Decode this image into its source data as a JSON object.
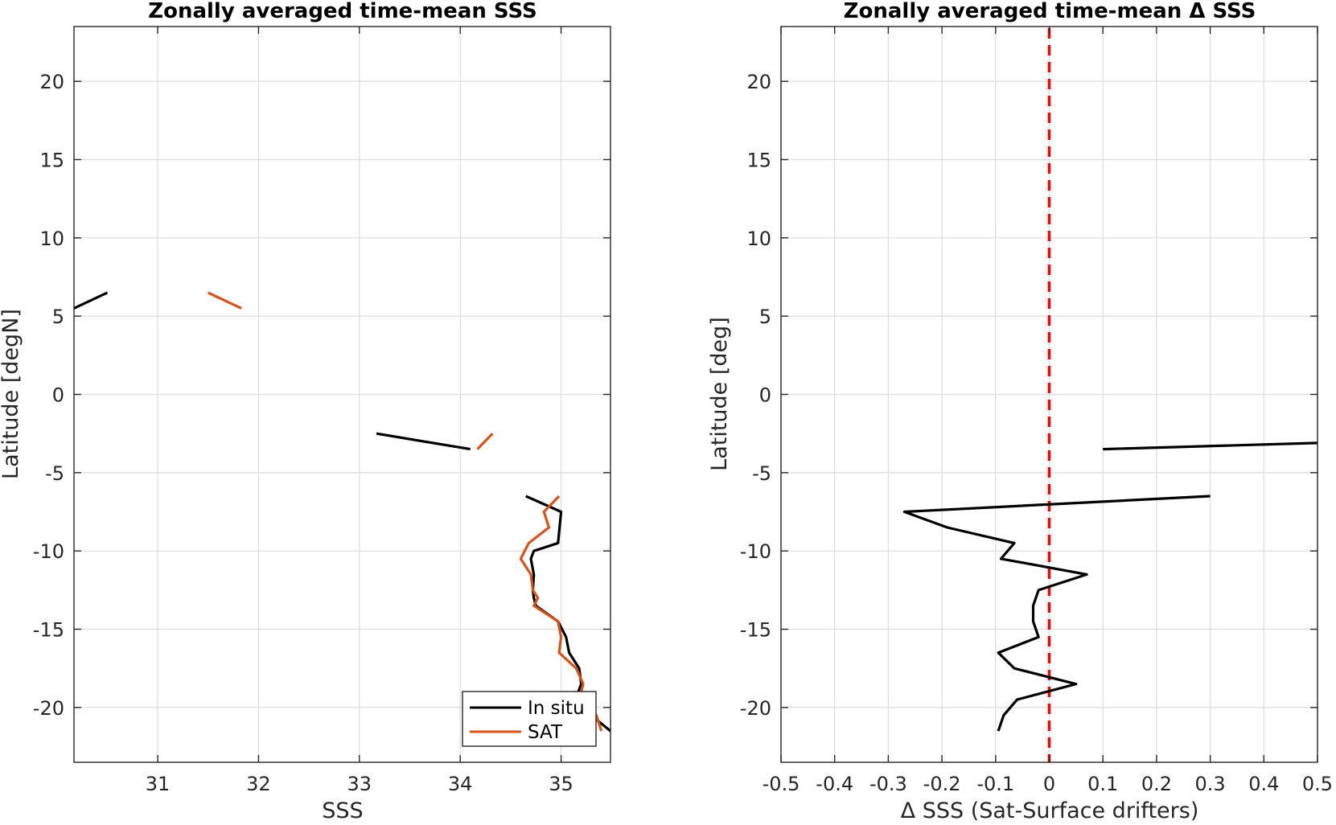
{
  "chart_data": [
    {
      "type": "line",
      "title": "Zonally averaged time-mean SSS",
      "xlabel": "SSS",
      "ylabel": "Latitude [degN]",
      "xlim": [
        30.17,
        35.49
      ],
      "ylim": [
        -23.5,
        23.5
      ],
      "xticks": [
        31,
        32,
        33,
        34,
        35
      ],
      "yticks": [
        20,
        15,
        10,
        5,
        0,
        -5,
        -10,
        -15,
        -20
      ],
      "grid": true,
      "legend": {
        "location": "bottom-right",
        "entries": [
          "In situ",
          "SAT"
        ]
      },
      "series": [
        {
          "name": "In situ",
          "color": "#000000",
          "segments": [
            [
              [
                30.17,
                5.5
              ],
              [
                30.5,
                6.5
              ]
            ],
            [
              [
                33.17,
                -2.5
              ],
              [
                34.1,
                -3.5
              ]
            ],
            [
              [
                34.65,
                -6.5
              ],
              [
                35.0,
                -7.5
              ],
              [
                34.97,
                -9.5
              ],
              [
                34.73,
                -10.0
              ],
              [
                34.7,
                -10.5
              ],
              [
                34.73,
                -11.5
              ],
              [
                34.72,
                -12.5
              ],
              [
                34.73,
                -13.0
              ],
              [
                34.75,
                -13.5
              ],
              [
                34.97,
                -14.5
              ],
              [
                35.05,
                -15.5
              ],
              [
                35.08,
                -16.5
              ],
              [
                35.18,
                -17.5
              ],
              [
                35.2,
                -18.5
              ],
              [
                35.17,
                -19.0
              ],
              [
                35.3,
                -20.5
              ],
              [
                35.49,
                -21.5
              ]
            ]
          ]
        },
        {
          "name": "SAT",
          "color": "#d95319",
          "segments": [
            [
              [
                31.5,
                6.5
              ],
              [
                31.83,
                5.5
              ]
            ],
            [
              [
                34.17,
                -3.5
              ],
              [
                34.32,
                -2.5
              ]
            ],
            [
              [
                34.98,
                -6.5
              ],
              [
                34.83,
                -7.5
              ],
              [
                34.88,
                -8.5
              ],
              [
                34.68,
                -9.5
              ],
              [
                34.6,
                -10.5
              ],
              [
                34.7,
                -11.5
              ],
              [
                34.72,
                -12.5
              ],
              [
                34.77,
                -13.0
              ],
              [
                34.73,
                -13.5
              ],
              [
                34.97,
                -14.5
              ],
              [
                35.0,
                -15.5
              ],
              [
                34.98,
                -16.5
              ],
              [
                35.15,
                -17.5
              ],
              [
                35.22,
                -18.5
              ],
              [
                35.2,
                -19.0
              ],
              [
                35.35,
                -20.5
              ],
              [
                35.4,
                -21.5
              ]
            ]
          ]
        }
      ]
    },
    {
      "type": "line",
      "title": "Zonally averaged time-mean Δ SSS",
      "xlabel": "Δ SSS (Sat-Surface drifters)",
      "ylabel": "Latitude [deg]",
      "xlim": [
        -0.5,
        0.5
      ],
      "ylim": [
        -23.5,
        23.5
      ],
      "xticks": [
        -0.5,
        -0.4,
        -0.3,
        -0.2,
        -0.1,
        0,
        0.1,
        0.2,
        0.3,
        0.4,
        0.5
      ],
      "yticks": [
        20,
        15,
        10,
        5,
        0,
        -5,
        -10,
        -15,
        -20
      ],
      "grid": true,
      "reference_line": {
        "x": 0,
        "color": "#ff0000",
        "style": "dashed"
      },
      "series": [
        {
          "color": "#000000",
          "segments": [
            [
              [
                0.1,
                -3.5
              ],
              [
                0.5,
                -3.1
              ]
            ],
            [
              [
                0.3,
                -6.5
              ],
              [
                -0.27,
                -7.5
              ],
              [
                -0.19,
                -8.5
              ],
              [
                -0.065,
                -9.5
              ],
              [
                -0.09,
                -10.5
              ],
              [
                0.07,
                -11.5
              ],
              [
                -0.02,
                -12.5
              ],
              [
                -0.03,
                -13.5
              ],
              [
                -0.03,
                -14.5
              ],
              [
                -0.02,
                -15.5
              ],
              [
                -0.095,
                -16.5
              ],
              [
                -0.065,
                -17.5
              ],
              [
                0.05,
                -18.5
              ],
              [
                -0.06,
                -19.5
              ],
              [
                -0.085,
                -20.5
              ],
              [
                -0.095,
                -21.5
              ]
            ]
          ]
        }
      ]
    }
  ]
}
